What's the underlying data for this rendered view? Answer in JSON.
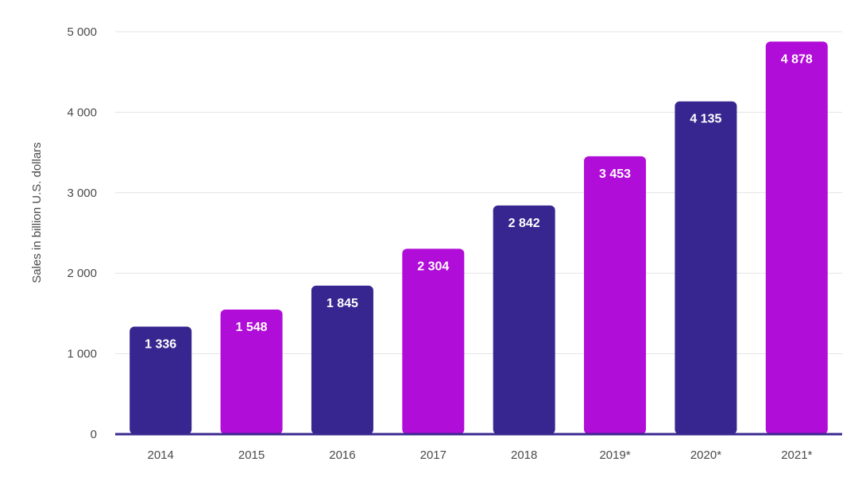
{
  "chart_data": {
    "type": "bar",
    "categories": [
      "2014",
      "2015",
      "2016",
      "2017",
      "2018",
      "2019*",
      "2020*",
      "2021*"
    ],
    "values": [
      1336,
      1548,
      1845,
      2304,
      2842,
      3453,
      4135,
      4878
    ],
    "value_labels": [
      "1 336",
      "1 548",
      "1 845",
      "2 304",
      "2 842",
      "3 453",
      "4 135",
      "4 878"
    ],
    "title": "",
    "xlabel": "",
    "ylabel": "Sales in billion U.S. dollars",
    "ylim": [
      0,
      5000
    ],
    "yticks": [
      0,
      1000,
      2000,
      3000,
      4000,
      5000
    ],
    "ytick_labels": [
      "0",
      "1 000",
      "2 000",
      "3 000",
      "4 000",
      "5 000"
    ],
    "grid": true,
    "legend": "none",
    "colors": {
      "odd": "#37268f",
      "even": "#b10dd8",
      "baseline": "#3b2890",
      "grid": "#e3e3e3"
    }
  }
}
